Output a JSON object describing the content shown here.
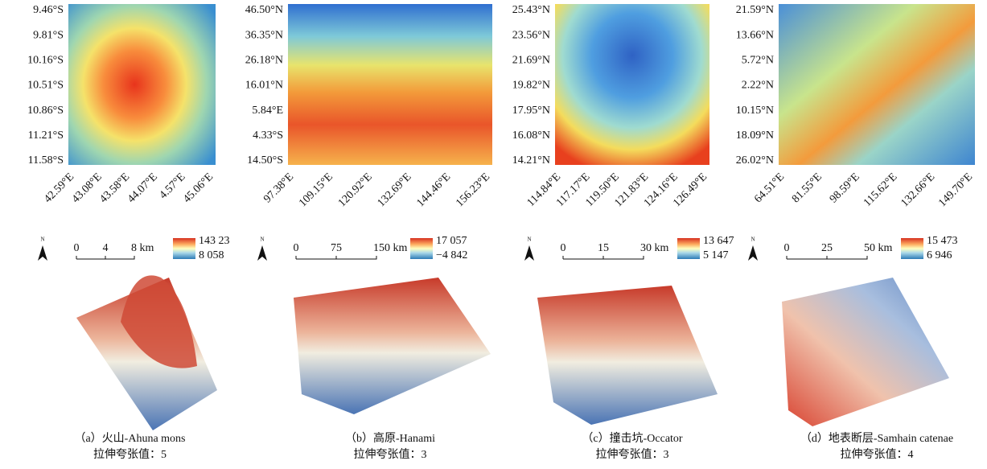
{
  "north_label": "N",
  "panels": [
    {
      "y_labels": [
        "9.46°S",
        "9.81°S",
        "10.16°S",
        "10.51°S",
        "10.86°S",
        "11.21°S",
        "11.58°S"
      ],
      "x_labels": [
        "42.59°E",
        "43.08°E",
        "43.58°E",
        "44.07°E",
        "4.57°E",
        "45.06°E"
      ],
      "scale": [
        "0",
        "4",
        "8 km"
      ],
      "legend": [
        "143 23",
        "8 058"
      ],
      "caption": "（a）火山-Ahuna mons",
      "stretch": "拉伸夸张值：5"
    },
    {
      "y_labels": [
        "46.50°N",
        "36.35°N",
        "26.18°N",
        "16.01°N",
        "5.84°E",
        "4.33°S",
        "14.50°S"
      ],
      "x_labels": [
        "97.38°E",
        "109.15°E",
        "120.92°E",
        "132.69°E",
        "144.46°E",
        "156.23°E"
      ],
      "scale": [
        "0",
        "75",
        "150 km"
      ],
      "legend": [
        "17 057",
        "−4 842"
      ],
      "caption": "（b）高原-Hanami",
      "stretch": "拉伸夸张值：3"
    },
    {
      "y_labels": [
        "25.43°N",
        "23.56°N",
        "21.69°N",
        "19.82°N",
        "17.95°N",
        "16.08°N",
        "14.21°N"
      ],
      "x_labels": [
        "114.84°E",
        "117.17°E",
        "119.50°E",
        "121.83°E",
        "124.16°E",
        "126.49°E"
      ],
      "scale": [
        "0",
        "15",
        "30 km"
      ],
      "legend": [
        "13 647",
        "5 147"
      ],
      "caption": "（c）撞击坑-Occator",
      "stretch": "拉伸夸张值：3"
    },
    {
      "y_labels": [
        "21.59°N",
        "13.66°N",
        "5.72°N",
        "2.22°N",
        "10.15°N",
        "18.09°N",
        "26.02°N"
      ],
      "x_labels": [
        "64.51°E",
        "81.55°E",
        "98.59°E",
        "115.62°E",
        "132.66°E",
        "149.70°E"
      ],
      "scale": [
        "0",
        "25",
        "50 km"
      ],
      "legend": [
        "15 473",
        "6 946"
      ],
      "caption": "（d）地表断层-Samhain catenae",
      "stretch": "拉伸夸张值：4"
    }
  ]
}
